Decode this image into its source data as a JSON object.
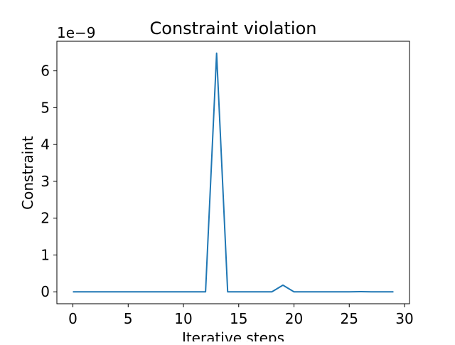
{
  "chart_data": {
    "type": "line",
    "title": "Constraint violation",
    "xlabel": "Iterative steps",
    "ylabel": "Constraint",
    "y_scale_label": "1e−9",
    "grid": false,
    "legend": "none",
    "xlim": [
      -1.45,
      30.45
    ],
    "ylim": [
      -0.324,
      6.804
    ],
    "xticks": [
      0,
      5,
      10,
      15,
      20,
      25,
      30
    ],
    "yticks": [
      0,
      1,
      2,
      3,
      4,
      5,
      6
    ],
    "line_color": "#1f77b4",
    "series": [
      {
        "x": [
          0,
          1,
          2,
          3,
          4,
          5,
          6,
          7,
          8,
          9,
          10,
          11,
          12,
          13,
          14,
          15,
          16,
          17,
          18,
          19,
          20,
          21,
          22,
          23,
          24,
          25,
          26,
          27,
          28,
          29
        ],
        "y": [
          0,
          0,
          0,
          0,
          0,
          0,
          0,
          0,
          0,
          0,
          0,
          0,
          0,
          6.48,
          0,
          0,
          0,
          0,
          0,
          0.18,
          0,
          0,
          0,
          0,
          0,
          0,
          0.005,
          0,
          0,
          0
        ]
      }
    ]
  }
}
